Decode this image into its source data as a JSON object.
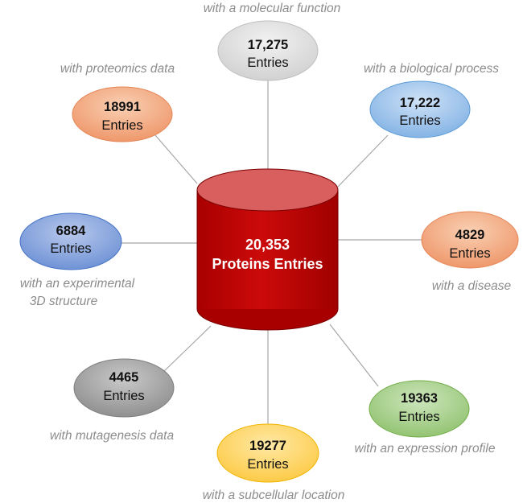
{
  "center": {
    "count": "20,353",
    "label": "Proteins Entries",
    "color": "#c00000"
  },
  "nodes": [
    {
      "id": "molecular-function",
      "count": "17,275",
      "unit": "Entries",
      "caption": "with a molecular function",
      "color": "#d9d9d9"
    },
    {
      "id": "biological-process",
      "count": "17,222",
      "unit": "Entries",
      "caption": "with a biological process",
      "color": "#9dc3e6"
    },
    {
      "id": "disease",
      "count": "4829",
      "unit": "Entries",
      "caption": "with a disease",
      "color": "#f4b183"
    },
    {
      "id": "expression-profile",
      "count": "19363",
      "unit": "Entries",
      "caption": "with an expression profile",
      "color": "#a9d18e"
    },
    {
      "id": "subcellular-location",
      "count": "19277",
      "unit": "Entries",
      "caption": "with a subcellular location",
      "color": "#ffd966"
    },
    {
      "id": "mutagenesis-data",
      "count": "4465",
      "unit": "Entries",
      "caption": "with mutagenesis data",
      "color": "#a6a6a6"
    },
    {
      "id": "experimental-3d-structure",
      "count": "6884",
      "unit": "Entries",
      "caption_line1": "with an experimental",
      "caption_line2": "3D structure",
      "color": "#8faadc"
    },
    {
      "id": "proteomics-data",
      "count": "18991",
      "unit": "Entries",
      "caption": "with proteomics data",
      "color": "#f4b183"
    }
  ]
}
